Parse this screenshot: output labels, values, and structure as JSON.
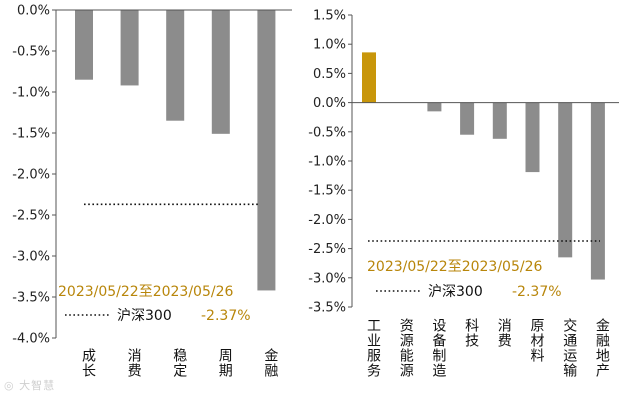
{
  "chart_data": [
    {
      "type": "bar",
      "categories": [
        "成长",
        "消费",
        "稳定",
        "周期",
        "金融"
      ],
      "values": [
        -0.85,
        -0.92,
        -1.35,
        -1.51,
        -3.42
      ],
      "ylim": [
        -4.0,
        0.0
      ],
      "yticks": [
        "0.0%",
        "-0.5%",
        "-1.0%",
        "-1.5%",
        "-2.0%",
        "-2.5%",
        "-3.0%",
        "-3.5%",
        "-4.0%"
      ],
      "grid": false,
      "bar_color": "#8c8c8c",
      "reference": {
        "value": -2.37,
        "label": "沪深300",
        "value_label": "-2.37%",
        "style": "dotted",
        "color": "#111111"
      },
      "annotation": "2023/05/22至2023/05/26",
      "annotation_color": "#b8860b"
    },
    {
      "type": "bar",
      "categories": [
        "工业服务",
        "资源能源",
        "设备制造",
        "科技",
        "消费",
        "原材料",
        "交通运输",
        "金融地产"
      ],
      "values": [
        0.86,
        0.0,
        -0.15,
        -0.55,
        -0.62,
        -1.19,
        -2.65,
        -3.03
      ],
      "ylim": [
        -3.5,
        1.5
      ],
      "yticks": [
        "1.5%",
        "1.0%",
        "0.5%",
        "0.0%",
        "-0.5%",
        "-1.0%",
        "-1.5%",
        "-2.0%",
        "-2.5%",
        "-3.0%",
        "-3.5%"
      ],
      "grid": false,
      "bar_color": "#8c8c8c",
      "highlight_color": "#c8960a",
      "highlight_index": 0,
      "reference": {
        "value": -2.37,
        "label": "沪深300",
        "value_label": "-2.37%",
        "style": "dotted",
        "color": "#111111"
      },
      "annotation": "2023/05/22至2023/05/26",
      "annotation_color": "#b8860b"
    }
  ],
  "watermark": "大智慧"
}
